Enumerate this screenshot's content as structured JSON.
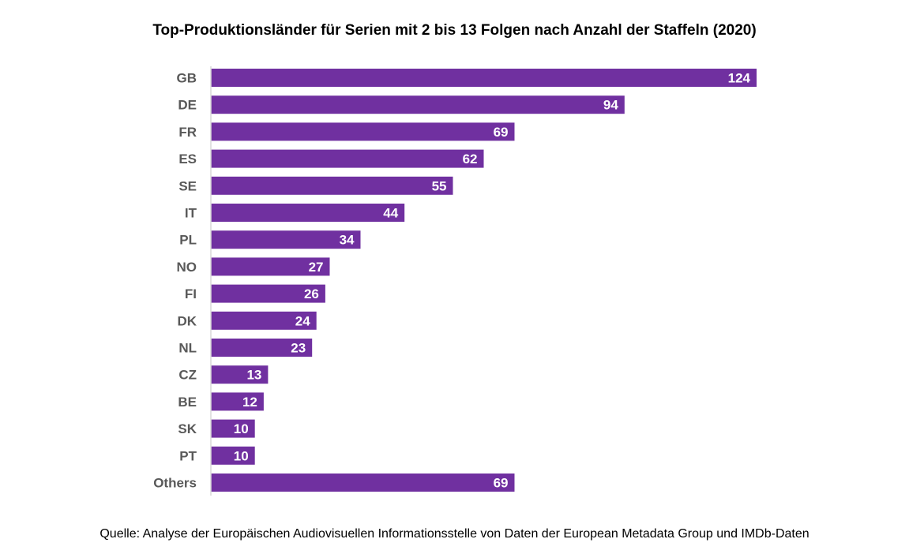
{
  "chart_data": {
    "type": "bar",
    "orientation": "horizontal",
    "title": "Top-Produktionsländer für Serien mit 2 bis 13 Folgen nach Anzahl der Staffeln (2020)",
    "categories": [
      "GB",
      "DE",
      "FR",
      "ES",
      "SE",
      "IT",
      "PL",
      "NO",
      "FI",
      "DK",
      "NL",
      "CZ",
      "BE",
      "SK",
      "PT",
      "Others"
    ],
    "values": [
      124,
      94,
      69,
      62,
      55,
      44,
      34,
      27,
      26,
      24,
      23,
      13,
      12,
      10,
      10,
      69
    ],
    "data_labels": true,
    "xlim": [
      0,
      124
    ],
    "grid": false,
    "legend": "none",
    "bar_color": "#7030a0",
    "axis_color": "#d9d9d9"
  },
  "source": "Quelle: Analyse der Europäischen Audiovisuellen Informationsstelle von Daten der European Metadata Group und IMDb-Daten"
}
